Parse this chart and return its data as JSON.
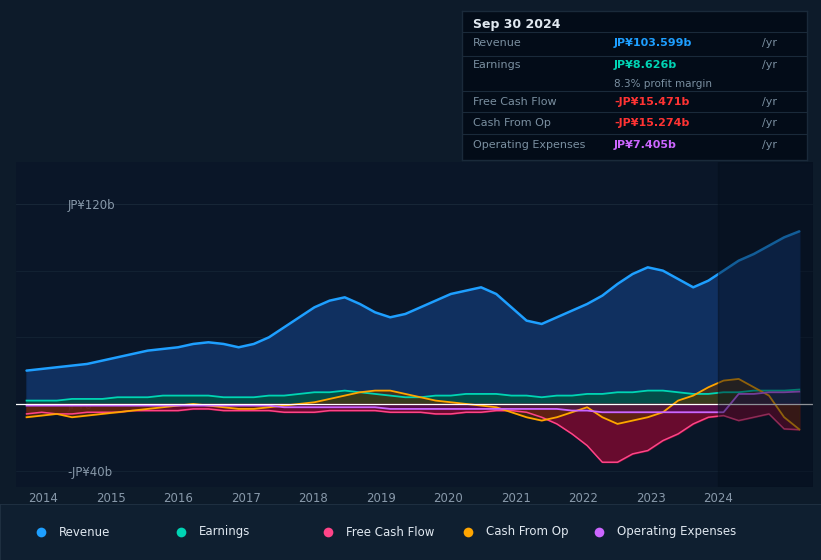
{
  "bg_color": "#0d1b2a",
  "plot_bg_color": "#0a1628",
  "grid_color": "#1a2a3a",
  "zero_line_color": "#ffffff",
  "revenue_color": "#1e9fff",
  "earnings_color": "#00d4b4",
  "fcf_color": "#ff4488",
  "cashfromop_color": "#ffa500",
  "opex_color": "#cc66ff",
  "revenue_fill_color": "#103060",
  "earnings_fill_color": "#005544",
  "fcf_fill_color": "#7a0a30",
  "cashfromop_fill_color": "#5a3000",
  "opex_fill_color": "#441060",
  "legend_bg": "#0f1f30",
  "legend_border": "#223344",
  "tooltip_bg": "#030c18",
  "tooltip_border": "#223344",
  "ylim": [
    -50,
    145
  ],
  "xlim_start": 2013.6,
  "xlim_end": 2025.4,
  "xtick_years": [
    2014,
    2015,
    2016,
    2017,
    2018,
    2019,
    2020,
    2021,
    2022,
    2023,
    2024
  ],
  "revenue": [
    20,
    21,
    22,
    23,
    24,
    26,
    28,
    30,
    32,
    33,
    34,
    36,
    37,
    36,
    34,
    36,
    40,
    46,
    52,
    58,
    62,
    64,
    60,
    55,
    52,
    54,
    58,
    62,
    66,
    68,
    70,
    66,
    58,
    50,
    48,
    52,
    56,
    60,
    65,
    72,
    78,
    82,
    80,
    75,
    70,
    74,
    80,
    86,
    90,
    95,
    100,
    103.599
  ],
  "earnings": [
    2,
    2,
    2,
    3,
    3,
    3,
    4,
    4,
    4,
    5,
    5,
    5,
    5,
    4,
    4,
    4,
    5,
    5,
    6,
    7,
    7,
    8,
    7,
    6,
    5,
    4,
    4,
    5,
    5,
    6,
    6,
    6,
    5,
    5,
    4,
    5,
    5,
    6,
    6,
    7,
    7,
    8,
    8,
    7,
    6,
    6,
    7,
    7,
    8,
    8,
    8,
    8.626
  ],
  "fcf": [
    -6,
    -5,
    -6,
    -6,
    -5,
    -5,
    -5,
    -4,
    -4,
    -4,
    -4,
    -3,
    -3,
    -4,
    -4,
    -4,
    -4,
    -5,
    -5,
    -5,
    -4,
    -4,
    -4,
    -4,
    -5,
    -5,
    -5,
    -6,
    -6,
    -5,
    -5,
    -4,
    -4,
    -5,
    -8,
    -12,
    -18,
    -25,
    -35,
    -35,
    -30,
    -28,
    -22,
    -18,
    -12,
    -8,
    -7,
    -10,
    -8,
    -6,
    -15,
    -15.471
  ],
  "cashfromop": [
    -8,
    -7,
    -6,
    -8,
    -7,
    -6,
    -5,
    -4,
    -3,
    -2,
    -1,
    0,
    -1,
    -2,
    -3,
    -3,
    -2,
    -1,
    0,
    1,
    3,
    5,
    7,
    8,
    8,
    6,
    4,
    2,
    1,
    0,
    -1,
    -2,
    -5,
    -8,
    -10,
    -8,
    -5,
    -2,
    -8,
    -12,
    -10,
    -8,
    -5,
    2,
    5,
    10,
    14,
    15,
    10,
    5,
    -8,
    -15.274
  ],
  "opex": [
    -1,
    -1,
    -1,
    -1,
    -1,
    -1,
    -1,
    -1,
    -1,
    -1,
    -1,
    -1,
    -1,
    -1,
    -1,
    -1,
    -1,
    -2,
    -2,
    -2,
    -2,
    -2,
    -2,
    -2,
    -3,
    -3,
    -3,
    -3,
    -3,
    -3,
    -3,
    -3,
    -3,
    -3,
    -3,
    -3,
    -4,
    -4,
    -5,
    -5,
    -5,
    -5,
    -5,
    -5,
    -5,
    -5,
    -5,
    6,
    6,
    7,
    7,
    7.405
  ],
  "n_quarterly": 52,
  "tooltip": {
    "date": "Sep 30 2024",
    "revenue_label": "Revenue",
    "revenue_value": "JP¥103.599b",
    "earnings_label": "Earnings",
    "earnings_value": "JP¥8.626b",
    "margin_text": "8.3% profit margin",
    "fcf_label": "Free Cash Flow",
    "fcf_value": "-JP¥15.471b",
    "cashfromop_label": "Cash From Op",
    "cashfromop_value": "-JP¥15.274b",
    "opex_label": "Operating Expenses",
    "opex_value": "JP¥7.405b"
  },
  "legend_items": [
    {
      "label": "Revenue",
      "color": "#1e9fff"
    },
    {
      "label": "Earnings",
      "color": "#00d4b4"
    },
    {
      "label": "Free Cash Flow",
      "color": "#ff4488"
    },
    {
      "label": "Cash From Op",
      "color": "#ffa500"
    },
    {
      "label": "Operating Expenses",
      "color": "#cc66ff"
    }
  ]
}
